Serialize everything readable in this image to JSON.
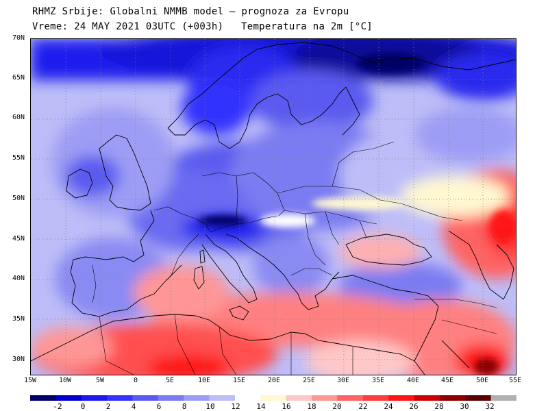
{
  "header": {
    "line1": "RHMZ Srbije: Globalni NMMB model — prognoza za Evropu",
    "line2_left": "Vreme: 24 MAY 2021 03UTC (+003h)",
    "line2_right": "Temperatura na 2m [°C]"
  },
  "map": {
    "projection": "lat-lon",
    "lon_range": [
      -15,
      55
    ],
    "lat_range": [
      28,
      70
    ],
    "lat_ticks": [
      "70N",
      "65N",
      "60N",
      "55N",
      "50N",
      "45N",
      "40N",
      "35N",
      "30N"
    ],
    "lon_ticks": [
      "15W",
      "10W",
      "5W",
      "0",
      "5E",
      "10E",
      "15E",
      "20E",
      "25E",
      "30E",
      "35E",
      "40E",
      "45E",
      "50E",
      "55E"
    ]
  },
  "legend": {
    "labels": [
      "-2",
      "0",
      "2",
      "4",
      "6",
      "8",
      "10",
      "12",
      "14",
      "16",
      "18",
      "20",
      "22",
      "24",
      "26",
      "28",
      "30",
      "32"
    ],
    "colors": [
      "#000066",
      "#0000cc",
      "#1a1aee",
      "#3333ff",
      "#5a5af0",
      "#7b7bf2",
      "#9d9df5",
      "#bdbdf8",
      "#ffffff",
      "#fff8d0",
      "#ffc8c8",
      "#ff9696",
      "#ff6464",
      "#ff3c3c",
      "#ff1414",
      "#cc0000",
      "#8a0000",
      "#5a0000",
      "#b0b0b0"
    ]
  }
}
